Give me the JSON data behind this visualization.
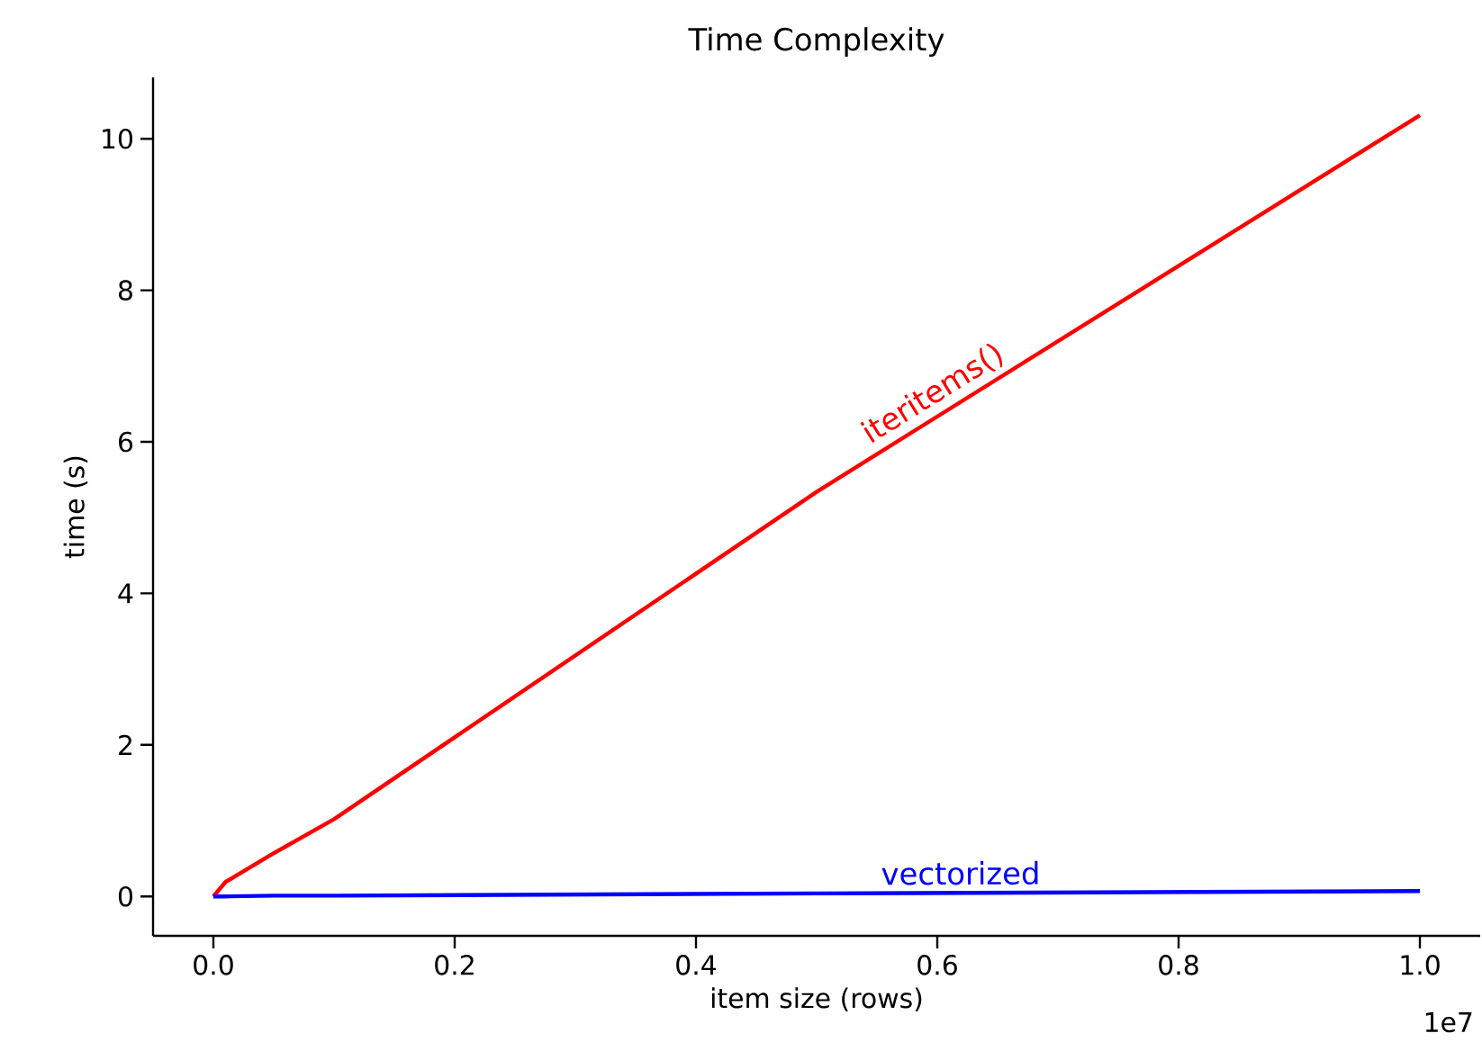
{
  "chart_data": {
    "type": "line",
    "title": "Time Complexity",
    "xlabel": "item size (rows)",
    "ylabel": "time (s)",
    "x": [
      0,
      0.01,
      0.05,
      0.1,
      0.5,
      1.0
    ],
    "series": [
      {
        "name": "iteritems()",
        "color": "#ff0000",
        "values": [
          0,
          0.19,
          0.57,
          1.02,
          5.34,
          10.31
        ]
      },
      {
        "name": "vectorized",
        "color": "#0000ff",
        "values": [
          0,
          0.0,
          0.01,
          0.01,
          0.04,
          0.07
        ]
      }
    ],
    "xlim": [
      -0.05,
      1.05
    ],
    "ylim": [
      -0.52,
      10.81
    ],
    "xticks": [
      {
        "value": 0,
        "label": "0.0"
      },
      0.2,
      0.4,
      0.6,
      0.8,
      {
        "value": 1.0,
        "label": "1.0"
      }
    ],
    "yticks": [
      0,
      2,
      4,
      6,
      8,
      10
    ],
    "annotations": [
      "1e7"
    ],
    "grid": false,
    "legend": false
  }
}
